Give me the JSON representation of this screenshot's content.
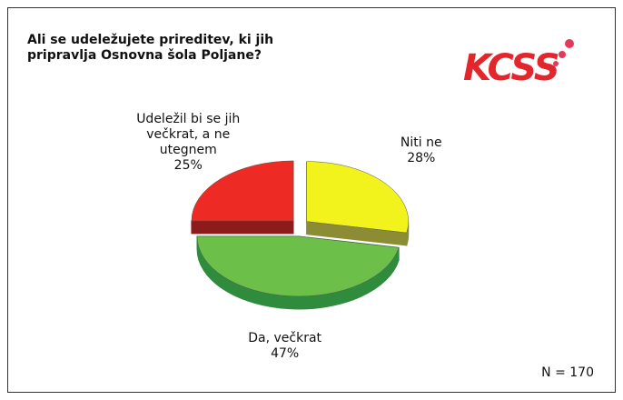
{
  "chart_data": {
    "type": "pie",
    "title": "Ali se udeležujete prireditev, ki jih pripravlja Osnovna šola Poljane?",
    "logo": "KCSS",
    "note": "N = 170",
    "categories": [
      "Niti ne",
      "Da, večkrat",
      "Udeležil bi se jih večkrat, a ne utegnem"
    ],
    "values": [
      28,
      47,
      25
    ],
    "value_labels": [
      "28%",
      "47%",
      "25%"
    ],
    "colors": [
      "#f2f21c",
      "#6cc04a",
      "#ee2a24"
    ],
    "side_colors": [
      "#8c8c34",
      "#2f8c3c",
      "#8c1c1c"
    ]
  }
}
